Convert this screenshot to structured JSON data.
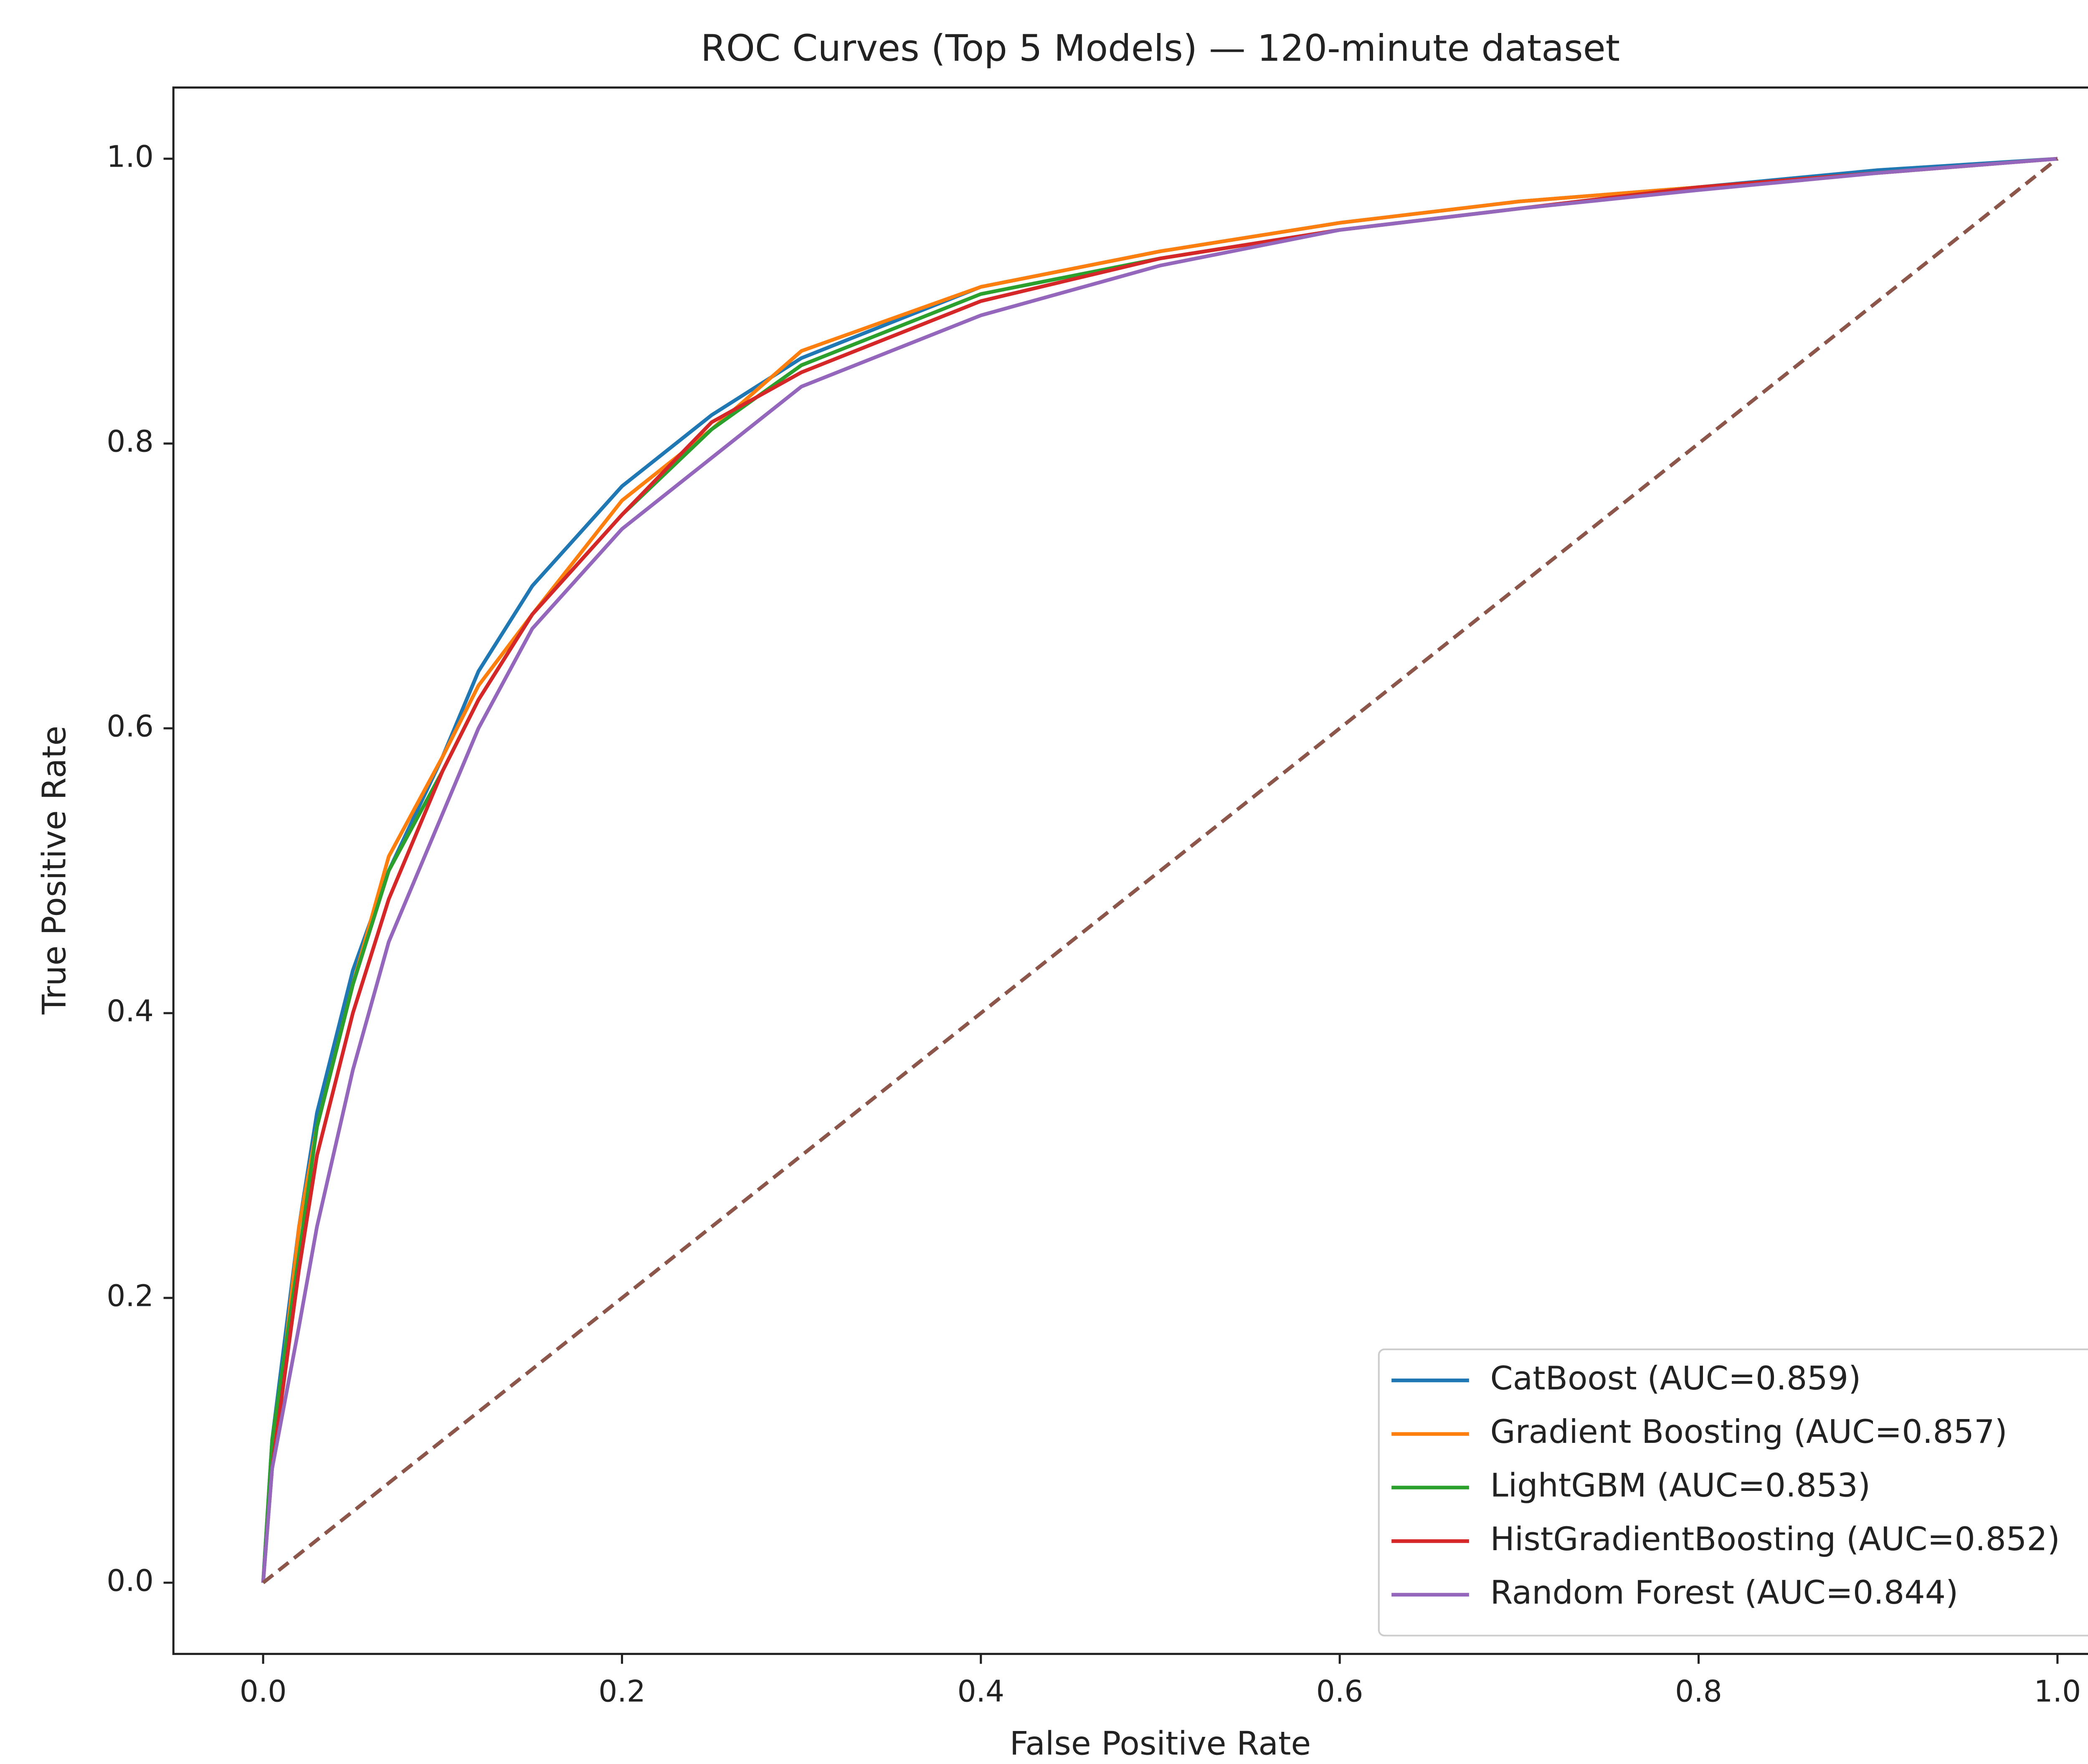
{
  "chart_data": {
    "type": "line",
    "title": "ROC Curves (Top 5 Models) — 120-minute dataset",
    "xlabel": "False Positive Rate",
    "ylabel": "True Positive Rate",
    "xlim": [
      -0.05,
      1.05
    ],
    "ylim": [
      -0.05,
      1.05
    ],
    "xticks": [
      {
        "value": 0,
        "label": "0.0"
      },
      0.2,
      0.4,
      0.6,
      0.8,
      {
        "value": 1,
        "label": "1.0"
      }
    ],
    "yticks": [
      {
        "value": 0,
        "label": "0.0"
      },
      0.2,
      0.4,
      0.6,
      0.8,
      {
        "value": 1,
        "label": "1.0"
      }
    ],
    "legend": "lower right",
    "series": [
      {
        "name": "CatBoost (AUC=0.859)",
        "color": "#1f77b4",
        "x": [
          0,
          0.005,
          0.02,
          0.03,
          0.05,
          0.07,
          0.1,
          0.12,
          0.15,
          0.2,
          0.25,
          0.3,
          0.4,
          0.5,
          0.6,
          0.7,
          0.8,
          0.9,
          1
        ],
        "values": [
          0,
          0.1,
          0.25,
          0.33,
          0.43,
          0.5,
          0.58,
          0.64,
          0.7,
          0.77,
          0.82,
          0.86,
          0.91,
          0.935,
          0.955,
          0.97,
          0.98,
          0.992,
          1
        ]
      },
      {
        "name": "Gradient Boosting (AUC=0.857)",
        "color": "#ff7f0e",
        "x": [
          0,
          0.005,
          0.02,
          0.03,
          0.05,
          0.07,
          0.1,
          0.12,
          0.15,
          0.2,
          0.25,
          0.3,
          0.4,
          0.5,
          0.6,
          0.7,
          0.8,
          0.9,
          1
        ],
        "values": [
          0,
          0.08,
          0.25,
          0.32,
          0.42,
          0.51,
          0.58,
          0.63,
          0.68,
          0.76,
          0.81,
          0.865,
          0.91,
          0.935,
          0.955,
          0.97,
          0.98,
          0.99,
          1
        ]
      },
      {
        "name": "LightGBM (AUC=0.853)",
        "color": "#2ca02c",
        "x": [
          0,
          0.005,
          0.02,
          0.03,
          0.05,
          0.07,
          0.1,
          0.12,
          0.15,
          0.2,
          0.25,
          0.3,
          0.4,
          0.5,
          0.6,
          0.7,
          0.8,
          0.9,
          1
        ],
        "values": [
          0,
          0.1,
          0.23,
          0.32,
          0.42,
          0.5,
          0.57,
          0.62,
          0.68,
          0.75,
          0.81,
          0.855,
          0.905,
          0.93,
          0.95,
          0.965,
          0.98,
          0.99,
          1
        ]
      },
      {
        "name": "HistGradientBoosting (AUC=0.852)",
        "color": "#d62728",
        "x": [
          0,
          0.005,
          0.02,
          0.03,
          0.05,
          0.07,
          0.1,
          0.12,
          0.15,
          0.2,
          0.25,
          0.3,
          0.4,
          0.5,
          0.6,
          0.7,
          0.8,
          0.9,
          1
        ],
        "values": [
          0,
          0.08,
          0.22,
          0.3,
          0.4,
          0.48,
          0.57,
          0.62,
          0.68,
          0.75,
          0.815,
          0.85,
          0.9,
          0.93,
          0.95,
          0.965,
          0.98,
          0.99,
          1
        ]
      },
      {
        "name": "Random Forest (AUC=0.844)",
        "color": "#9467bd",
        "x": [
          0,
          0.005,
          0.02,
          0.03,
          0.05,
          0.07,
          0.1,
          0.12,
          0.15,
          0.2,
          0.25,
          0.3,
          0.4,
          0.5,
          0.6,
          0.7,
          0.8,
          0.9,
          1
        ],
        "values": [
          0,
          0.08,
          0.18,
          0.25,
          0.36,
          0.45,
          0.54,
          0.6,
          0.67,
          0.74,
          0.79,
          0.84,
          0.89,
          0.925,
          0.95,
          0.965,
          0.978,
          0.99,
          1
        ]
      }
    ],
    "diagonal": {
      "x": [
        0,
        1
      ],
      "values": [
        0,
        1
      ],
      "color": "#8c564b",
      "dashed": true
    }
  }
}
